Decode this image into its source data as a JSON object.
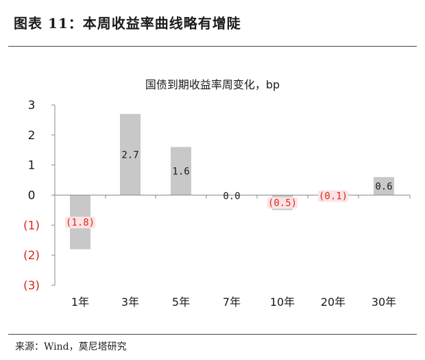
{
  "figure": {
    "title": "图表 11：本周收益率曲线略有增陡",
    "source": "来源：Wind，莫尼塔研究"
  },
  "colors": {
    "bar": "#c8c8c8",
    "negative_label": "#e0261c",
    "negative_label_bg": "#fbe4e4",
    "axis": "#8a8a8a"
  },
  "chart_data": {
    "type": "bar",
    "title": "国债到期收益率周变化，bp",
    "categories": [
      "1年",
      "3年",
      "5年",
      "7年",
      "10年",
      "20年",
      "30年"
    ],
    "values": [
      -1.8,
      2.7,
      1.6,
      0.0,
      -0.5,
      -0.1,
      0.6
    ],
    "data_labels": [
      "(1.8)",
      "2.7",
      "1.6",
      "0.0",
      "(0.5)",
      "(0.1)",
      "0.6"
    ],
    "ylim": [
      -3,
      3
    ],
    "yticks": [
      3,
      2,
      1,
      0,
      -1,
      -2,
      -3
    ],
    "ytick_labels": [
      "3",
      "2",
      "1",
      "0",
      "(1)",
      "(2)",
      "(3)"
    ],
    "xlabel": "",
    "ylabel": "",
    "grid": false,
    "legend": false
  }
}
